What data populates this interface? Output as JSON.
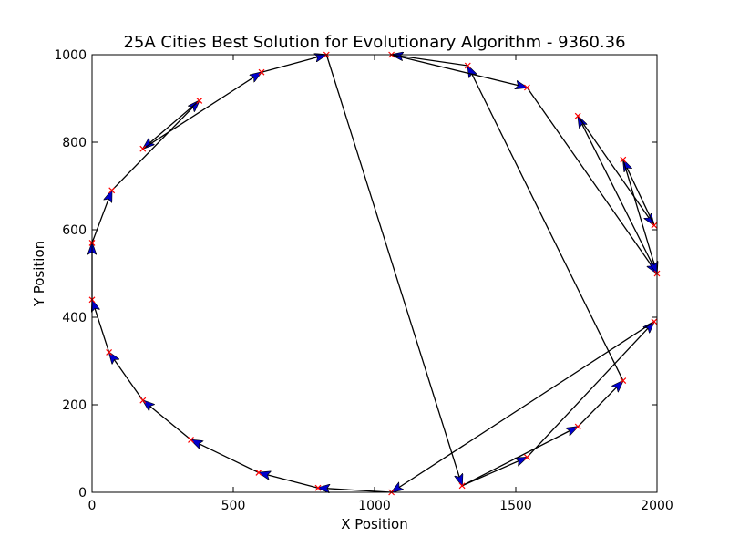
{
  "chart_data": {
    "type": "line",
    "title": "25A Cities Best Solution for Evolutionary Algorithm - 9360.36",
    "xlabel": "X Position",
    "ylabel": "Y Position",
    "xlim": [
      0,
      2000
    ],
    "ylim": [
      0,
      1000
    ],
    "xticks": [
      "0",
      "500",
      "1000",
      "1500",
      "2000"
    ],
    "yticks": [
      "0",
      "200",
      "400",
      "600",
      "800",
      "1000"
    ],
    "grid": false,
    "colors": {
      "path": "#000000",
      "arrowhead": "#0000cc",
      "city_marker": "#ff0000"
    },
    "tour": [
      [
        1310,
        15
      ],
      [
        1540,
        80
      ],
      [
        1990,
        390
      ],
      [
        1060,
        0
      ],
      [
        800,
        10
      ],
      [
        590,
        45
      ],
      [
        350,
        120
      ],
      [
        180,
        210
      ],
      [
        60,
        320
      ],
      [
        0,
        440
      ],
      [
        0,
        570
      ],
      [
        70,
        690
      ],
      [
        380,
        895
      ],
      [
        180,
        785
      ],
      [
        600,
        960
      ],
      [
        830,
        1000
      ],
      [
        1310,
        15
      ],
      [
        1720,
        150
      ],
      [
        1880,
        255
      ],
      [
        1330,
        975
      ],
      [
        1060,
        1000
      ],
      [
        1540,
        925
      ],
      [
        2000,
        500
      ],
      [
        1720,
        860
      ],
      [
        1990,
        610
      ],
      [
        1880,
        760
      ],
      [
        2000,
        500
      ]
    ]
  }
}
